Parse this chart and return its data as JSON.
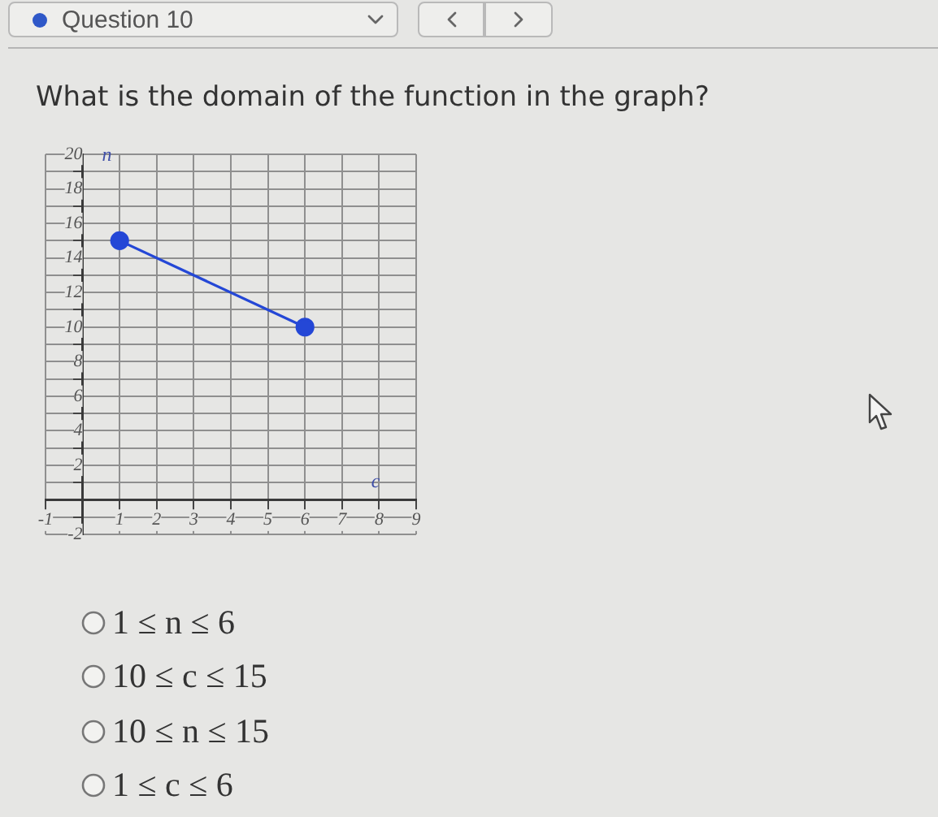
{
  "chart_data": {
    "type": "line",
    "title": "What is the domain of the function in the graph?",
    "xlabel": "c",
    "ylabel": "n",
    "x": [
      1,
      6
    ],
    "series": [
      {
        "color": "#2447d6",
        "values": [
          15,
          10
        ]
      }
    ],
    "xlim": [
      -1,
      9
    ],
    "xticks": [
      -1,
      {
        "value": 0,
        "label": null
      },
      1,
      2,
      3,
      4,
      5,
      6,
      7,
      8,
      9
    ],
    "ylim": [
      -2,
      20
    ],
    "yticks": [
      -2,
      {
        "value": -1,
        "label": null
      },
      {
        "value": 0,
        "label": null
      },
      {
        "value": 1,
        "label": null
      },
      2,
      {
        "value": 3,
        "label": null
      },
      4,
      {
        "value": 5,
        "label": null
      },
      6,
      {
        "value": 7,
        "label": null
      },
      8,
      {
        "value": 9,
        "label": null
      },
      10,
      {
        "value": 11,
        "label": null
      },
      12,
      {
        "value": 13,
        "label": null
      },
      14,
      {
        "value": 15,
        "label": null
      },
      16,
      {
        "value": 17,
        "label": null
      },
      18,
      {
        "value": 19,
        "label": null
      },
      20
    ],
    "grid": true,
    "marker": "circle",
    "line_style": "solid",
    "annotations": [
      "Question 10",
      "1 ≤ n ≤ 6",
      "10 ≤ c ≤ 15",
      "10 ≤ n ≤ 15",
      "1 ≤ c ≤ 6"
    ]
  }
}
